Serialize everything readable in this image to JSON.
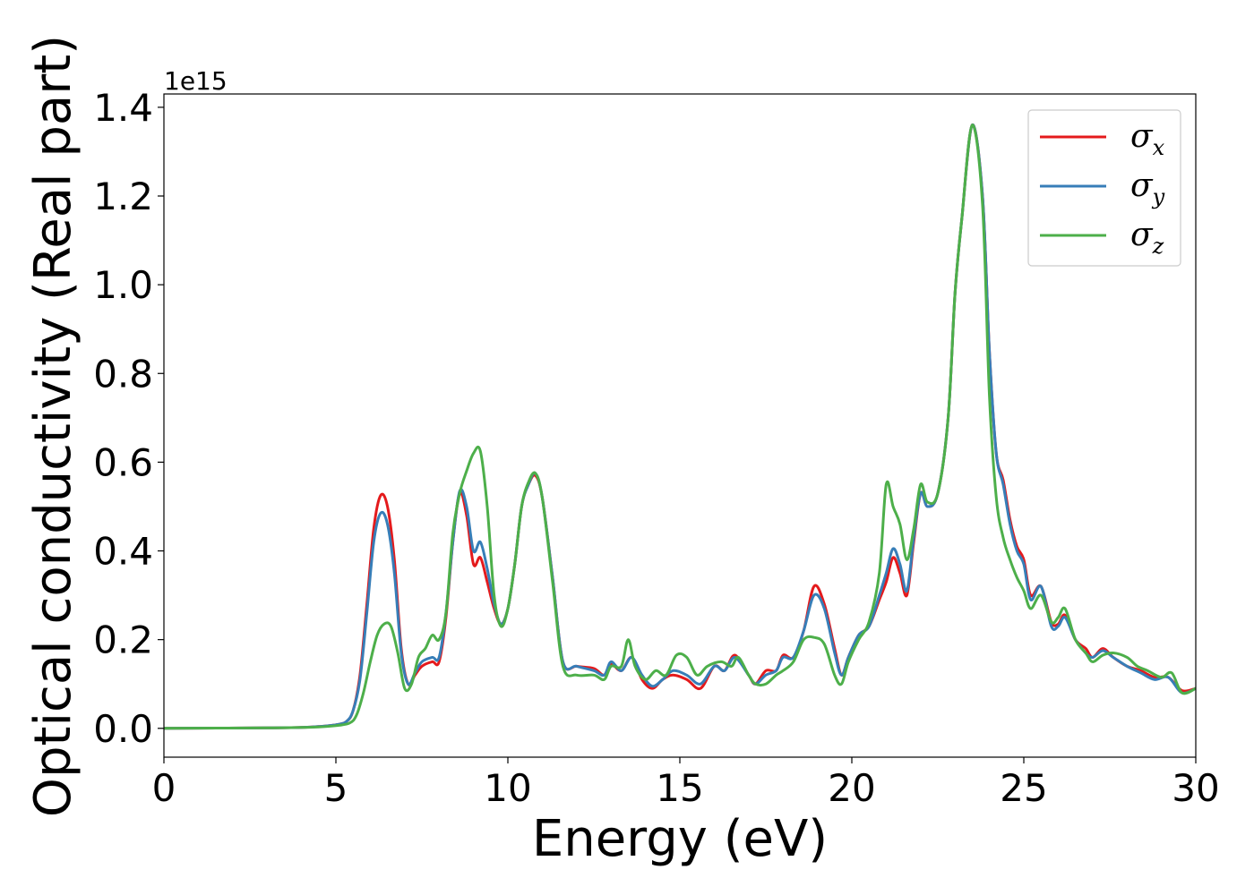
{
  "chart_data": {
    "type": "line",
    "xlabel": "Energy (eV)",
    "ylabel": "Optical conductivity (Real part)",
    "y_offset_label": "1e15",
    "y_scale_factor": 1000000000000000.0,
    "xlim": [
      0,
      30
    ],
    "ylim": [
      -0.065,
      1.43
    ],
    "x_ticks": [
      0,
      5,
      10,
      15,
      20,
      25,
      30
    ],
    "x_tick_labels": [
      "0",
      "5",
      "10",
      "15",
      "20",
      "25",
      "30"
    ],
    "y_ticks": [
      0.0,
      0.2,
      0.4,
      0.6,
      0.8,
      1.0,
      1.2,
      1.4
    ],
    "y_tick_labels": [
      "0.0",
      "0.2",
      "0.4",
      "0.6",
      "0.8",
      "1.0",
      "1.2",
      "1.4"
    ],
    "grid": false,
    "legend_position": "top-right",
    "series": [
      {
        "name": "σx",
        "symbol": "σ",
        "subscript": "x",
        "color": "#e41a1c",
        "points": [
          [
            0,
            0
          ],
          [
            3,
            0.001
          ],
          [
            4,
            0.002
          ],
          [
            4.5,
            0.004
          ],
          [
            5,
            0.008
          ],
          [
            5.3,
            0.015
          ],
          [
            5.5,
            0.04
          ],
          [
            5.7,
            0.12
          ],
          [
            5.9,
            0.28
          ],
          [
            6.1,
            0.45
          ],
          [
            6.3,
            0.525
          ],
          [
            6.5,
            0.5
          ],
          [
            6.7,
            0.38
          ],
          [
            6.9,
            0.18
          ],
          [
            7.1,
            0.1
          ],
          [
            7.3,
            0.12
          ],
          [
            7.5,
            0.14
          ],
          [
            7.8,
            0.15
          ],
          [
            8.0,
            0.15
          ],
          [
            8.2,
            0.25
          ],
          [
            8.4,
            0.42
          ],
          [
            8.6,
            0.53
          ],
          [
            8.8,
            0.48
          ],
          [
            9.0,
            0.37
          ],
          [
            9.2,
            0.385
          ],
          [
            9.4,
            0.33
          ],
          [
            9.6,
            0.27
          ],
          [
            9.8,
            0.235
          ],
          [
            10.0,
            0.27
          ],
          [
            10.2,
            0.37
          ],
          [
            10.4,
            0.5
          ],
          [
            10.6,
            0.55
          ],
          [
            10.8,
            0.57
          ],
          [
            11.0,
            0.52
          ],
          [
            11.3,
            0.34
          ],
          [
            11.6,
            0.15
          ],
          [
            12.0,
            0.14
          ],
          [
            12.5,
            0.135
          ],
          [
            12.8,
            0.12
          ],
          [
            13.0,
            0.145
          ],
          [
            13.3,
            0.13
          ],
          [
            13.6,
            0.16
          ],
          [
            13.9,
            0.11
          ],
          [
            14.2,
            0.09
          ],
          [
            14.5,
            0.11
          ],
          [
            14.8,
            0.12
          ],
          [
            15.2,
            0.11
          ],
          [
            15.6,
            0.09
          ],
          [
            16.0,
            0.14
          ],
          [
            16.3,
            0.13
          ],
          [
            16.6,
            0.165
          ],
          [
            17.0,
            0.12
          ],
          [
            17.2,
            0.1
          ],
          [
            17.5,
            0.13
          ],
          [
            17.8,
            0.13
          ],
          [
            18.0,
            0.165
          ],
          [
            18.3,
            0.16
          ],
          [
            18.6,
            0.22
          ],
          [
            18.9,
            0.32
          ],
          [
            19.2,
            0.28
          ],
          [
            19.5,
            0.18
          ],
          [
            19.7,
            0.12
          ],
          [
            19.9,
            0.16
          ],
          [
            20.2,
            0.21
          ],
          [
            20.5,
            0.23
          ],
          [
            20.8,
            0.29
          ],
          [
            21.0,
            0.33
          ],
          [
            21.2,
            0.385
          ],
          [
            21.4,
            0.35
          ],
          [
            21.6,
            0.3
          ],
          [
            21.8,
            0.42
          ],
          [
            22.0,
            0.53
          ],
          [
            22.2,
            0.5
          ],
          [
            22.5,
            0.53
          ],
          [
            22.8,
            0.7
          ],
          [
            23.0,
            0.98
          ],
          [
            23.2,
            1.15
          ],
          [
            23.5,
            1.36
          ],
          [
            23.8,
            1.2
          ],
          [
            24.0,
            0.85
          ],
          [
            24.2,
            0.62
          ],
          [
            24.4,
            0.56
          ],
          [
            24.6,
            0.47
          ],
          [
            24.8,
            0.41
          ],
          [
            25.0,
            0.38
          ],
          [
            25.2,
            0.3
          ],
          [
            25.5,
            0.32
          ],
          [
            25.8,
            0.24
          ],
          [
            26.0,
            0.235
          ],
          [
            26.2,
            0.255
          ],
          [
            26.5,
            0.2
          ],
          [
            26.8,
            0.18
          ],
          [
            27.0,
            0.16
          ],
          [
            27.3,
            0.18
          ],
          [
            27.6,
            0.16
          ],
          [
            28.0,
            0.14
          ],
          [
            28.4,
            0.13
          ],
          [
            28.8,
            0.115
          ],
          [
            29.2,
            0.115
          ],
          [
            29.6,
            0.085
          ],
          [
            30,
            0.09
          ]
        ]
      },
      {
        "name": "σy",
        "symbol": "σ",
        "subscript": "y",
        "color": "#377eb8",
        "points": [
          [
            0,
            0
          ],
          [
            3,
            0.001
          ],
          [
            4,
            0.002
          ],
          [
            4.5,
            0.004
          ],
          [
            5,
            0.008
          ],
          [
            5.3,
            0.015
          ],
          [
            5.5,
            0.04
          ],
          [
            5.7,
            0.11
          ],
          [
            5.9,
            0.26
          ],
          [
            6.1,
            0.42
          ],
          [
            6.3,
            0.485
          ],
          [
            6.5,
            0.46
          ],
          [
            6.7,
            0.35
          ],
          [
            6.9,
            0.17
          ],
          [
            7.1,
            0.1
          ],
          [
            7.3,
            0.125
          ],
          [
            7.5,
            0.15
          ],
          [
            7.8,
            0.16
          ],
          [
            8.0,
            0.16
          ],
          [
            8.2,
            0.26
          ],
          [
            8.4,
            0.42
          ],
          [
            8.6,
            0.535
          ],
          [
            8.8,
            0.5
          ],
          [
            9.0,
            0.4
          ],
          [
            9.2,
            0.42
          ],
          [
            9.4,
            0.36
          ],
          [
            9.6,
            0.28
          ],
          [
            9.8,
            0.235
          ],
          [
            10.0,
            0.27
          ],
          [
            10.2,
            0.37
          ],
          [
            10.4,
            0.5
          ],
          [
            10.6,
            0.55
          ],
          [
            10.8,
            0.575
          ],
          [
            11.0,
            0.52
          ],
          [
            11.3,
            0.34
          ],
          [
            11.6,
            0.15
          ],
          [
            12.0,
            0.14
          ],
          [
            12.5,
            0.13
          ],
          [
            12.8,
            0.12
          ],
          [
            13.0,
            0.15
          ],
          [
            13.3,
            0.13
          ],
          [
            13.6,
            0.16
          ],
          [
            13.9,
            0.12
          ],
          [
            14.2,
            0.095
          ],
          [
            14.5,
            0.11
          ],
          [
            14.8,
            0.13
          ],
          [
            15.2,
            0.12
          ],
          [
            15.6,
            0.1
          ],
          [
            16.0,
            0.14
          ],
          [
            16.3,
            0.13
          ],
          [
            16.6,
            0.16
          ],
          [
            17.0,
            0.12
          ],
          [
            17.2,
            0.1
          ],
          [
            17.5,
            0.12
          ],
          [
            17.8,
            0.13
          ],
          [
            18.0,
            0.16
          ],
          [
            18.3,
            0.16
          ],
          [
            18.6,
            0.22
          ],
          [
            18.9,
            0.3
          ],
          [
            19.2,
            0.27
          ],
          [
            19.5,
            0.17
          ],
          [
            19.7,
            0.12
          ],
          [
            19.9,
            0.16
          ],
          [
            20.2,
            0.21
          ],
          [
            20.5,
            0.23
          ],
          [
            20.8,
            0.3
          ],
          [
            21.0,
            0.35
          ],
          [
            21.2,
            0.405
          ],
          [
            21.4,
            0.37
          ],
          [
            21.6,
            0.31
          ],
          [
            21.8,
            0.43
          ],
          [
            22.0,
            0.53
          ],
          [
            22.2,
            0.5
          ],
          [
            22.5,
            0.53
          ],
          [
            22.8,
            0.7
          ],
          [
            23.0,
            0.98
          ],
          [
            23.2,
            1.15
          ],
          [
            23.5,
            1.36
          ],
          [
            23.8,
            1.2
          ],
          [
            24.0,
            0.85
          ],
          [
            24.2,
            0.62
          ],
          [
            24.4,
            0.55
          ],
          [
            24.6,
            0.46
          ],
          [
            24.8,
            0.4
          ],
          [
            25.0,
            0.37
          ],
          [
            25.2,
            0.29
          ],
          [
            25.5,
            0.32
          ],
          [
            25.8,
            0.23
          ],
          [
            26.0,
            0.23
          ],
          [
            26.2,
            0.25
          ],
          [
            26.5,
            0.2
          ],
          [
            26.8,
            0.17
          ],
          [
            27.0,
            0.16
          ],
          [
            27.3,
            0.175
          ],
          [
            27.6,
            0.16
          ],
          [
            28.0,
            0.14
          ],
          [
            28.4,
            0.125
          ],
          [
            28.8,
            0.11
          ],
          [
            29.2,
            0.115
          ],
          [
            29.6,
            0.08
          ],
          [
            30,
            0.09
          ]
        ]
      },
      {
        "name": "σz",
        "symbol": "σ",
        "subscript": "z",
        "color": "#4daf4a",
        "points": [
          [
            0,
            0
          ],
          [
            3,
            0.001
          ],
          [
            4,
            0.002
          ],
          [
            4.5,
            0.003
          ],
          [
            5,
            0.006
          ],
          [
            5.4,
            0.012
          ],
          [
            5.6,
            0.03
          ],
          [
            5.8,
            0.08
          ],
          [
            6.0,
            0.15
          ],
          [
            6.2,
            0.21
          ],
          [
            6.4,
            0.235
          ],
          [
            6.6,
            0.23
          ],
          [
            6.8,
            0.17
          ],
          [
            7.0,
            0.09
          ],
          [
            7.2,
            0.1
          ],
          [
            7.4,
            0.16
          ],
          [
            7.6,
            0.18
          ],
          [
            7.8,
            0.21
          ],
          [
            8.0,
            0.2
          ],
          [
            8.2,
            0.26
          ],
          [
            8.4,
            0.44
          ],
          [
            8.6,
            0.53
          ],
          [
            8.8,
            0.58
          ],
          [
            9.0,
            0.62
          ],
          [
            9.2,
            0.625
          ],
          [
            9.4,
            0.5
          ],
          [
            9.6,
            0.3
          ],
          [
            9.8,
            0.23
          ],
          [
            10.0,
            0.27
          ],
          [
            10.2,
            0.37
          ],
          [
            10.4,
            0.5
          ],
          [
            10.6,
            0.555
          ],
          [
            10.8,
            0.575
          ],
          [
            11.0,
            0.52
          ],
          [
            11.3,
            0.33
          ],
          [
            11.6,
            0.14
          ],
          [
            12.0,
            0.12
          ],
          [
            12.5,
            0.12
          ],
          [
            12.8,
            0.11
          ],
          [
            13.0,
            0.14
          ],
          [
            13.3,
            0.14
          ],
          [
            13.5,
            0.2
          ],
          [
            13.7,
            0.14
          ],
          [
            14.0,
            0.11
          ],
          [
            14.3,
            0.13
          ],
          [
            14.6,
            0.12
          ],
          [
            14.9,
            0.165
          ],
          [
            15.2,
            0.16
          ],
          [
            15.5,
            0.12
          ],
          [
            15.8,
            0.14
          ],
          [
            16.2,
            0.15
          ],
          [
            16.5,
            0.14
          ],
          [
            16.7,
            0.16
          ],
          [
            17.0,
            0.12
          ],
          [
            17.2,
            0.1
          ],
          [
            17.5,
            0.1
          ],
          [
            17.8,
            0.12
          ],
          [
            18.0,
            0.13
          ],
          [
            18.3,
            0.15
          ],
          [
            18.6,
            0.2
          ],
          [
            18.9,
            0.205
          ],
          [
            19.2,
            0.19
          ],
          [
            19.5,
            0.12
          ],
          [
            19.7,
            0.1
          ],
          [
            19.9,
            0.15
          ],
          [
            20.2,
            0.2
          ],
          [
            20.5,
            0.24
          ],
          [
            20.8,
            0.35
          ],
          [
            21.0,
            0.55
          ],
          [
            21.2,
            0.5
          ],
          [
            21.4,
            0.46
          ],
          [
            21.6,
            0.38
          ],
          [
            21.8,
            0.45
          ],
          [
            22.0,
            0.55
          ],
          [
            22.2,
            0.51
          ],
          [
            22.5,
            0.53
          ],
          [
            22.8,
            0.7
          ],
          [
            23.0,
            0.98
          ],
          [
            23.2,
            1.15
          ],
          [
            23.5,
            1.36
          ],
          [
            23.8,
            1.18
          ],
          [
            24.0,
            0.75
          ],
          [
            24.2,
            0.52
          ],
          [
            24.4,
            0.43
          ],
          [
            24.6,
            0.38
          ],
          [
            24.8,
            0.34
          ],
          [
            25.0,
            0.31
          ],
          [
            25.2,
            0.27
          ],
          [
            25.5,
            0.3
          ],
          [
            25.8,
            0.24
          ],
          [
            26.0,
            0.25
          ],
          [
            26.2,
            0.27
          ],
          [
            26.5,
            0.2
          ],
          [
            26.8,
            0.17
          ],
          [
            27.0,
            0.15
          ],
          [
            27.3,
            0.165
          ],
          [
            27.6,
            0.17
          ],
          [
            28.0,
            0.16
          ],
          [
            28.3,
            0.14
          ],
          [
            28.6,
            0.13
          ],
          [
            29.0,
            0.115
          ],
          [
            29.3,
            0.125
          ],
          [
            29.6,
            0.08
          ],
          [
            30,
            0.09
          ]
        ]
      }
    ]
  }
}
